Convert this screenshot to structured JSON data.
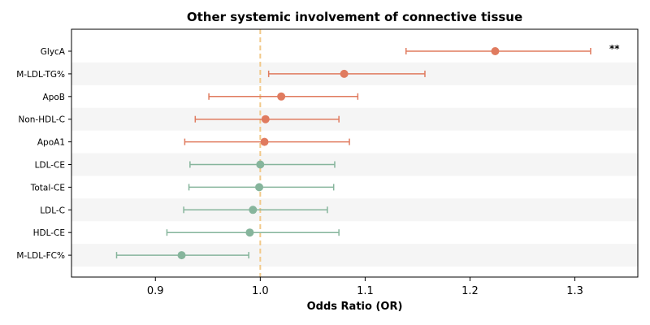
{
  "chart_data": {
    "type": "forest",
    "title": "Other systemic involvement of connective tissue",
    "xlabel": "Odds Ratio (OR)",
    "xlim": [
      0.82,
      1.36
    ],
    "xticks": [
      0.9,
      1.0,
      1.1,
      1.2,
      1.3
    ],
    "reference_line": 1.0,
    "colors": {
      "positive": "#E07B5F",
      "negative": "#86B59C",
      "reference": "#F2C98A",
      "band": "#F5F5F5"
    },
    "rows": [
      {
        "label": "GlycA",
        "or": 1.224,
        "lo": 1.139,
        "hi": 1.315,
        "group": "positive",
        "annotation": "**"
      },
      {
        "label": "M-LDL-TG%",
        "or": 1.08,
        "lo": 1.008,
        "hi": 1.157,
        "group": "positive",
        "annotation": ""
      },
      {
        "label": "ApoB",
        "or": 1.02,
        "lo": 0.951,
        "hi": 1.093,
        "group": "positive",
        "annotation": ""
      },
      {
        "label": "Non-HDL-C",
        "or": 1.005,
        "lo": 0.938,
        "hi": 1.075,
        "group": "positive",
        "annotation": ""
      },
      {
        "label": "ApoA1",
        "or": 1.004,
        "lo": 0.928,
        "hi": 1.085,
        "group": "positive",
        "annotation": ""
      },
      {
        "label": "LDL-CE",
        "or": 1.0,
        "lo": 0.933,
        "hi": 1.071,
        "group": "negative",
        "annotation": ""
      },
      {
        "label": "Total-CE",
        "or": 0.999,
        "lo": 0.932,
        "hi": 1.07,
        "group": "negative",
        "annotation": ""
      },
      {
        "label": "LDL-C",
        "or": 0.993,
        "lo": 0.927,
        "hi": 1.064,
        "group": "negative",
        "annotation": ""
      },
      {
        "label": "HDL-CE",
        "or": 0.99,
        "lo": 0.911,
        "hi": 1.075,
        "group": "negative",
        "annotation": ""
      },
      {
        "label": "M-LDL-FC%",
        "or": 0.925,
        "lo": 0.863,
        "hi": 0.989,
        "group": "negative",
        "annotation": ""
      }
    ]
  }
}
